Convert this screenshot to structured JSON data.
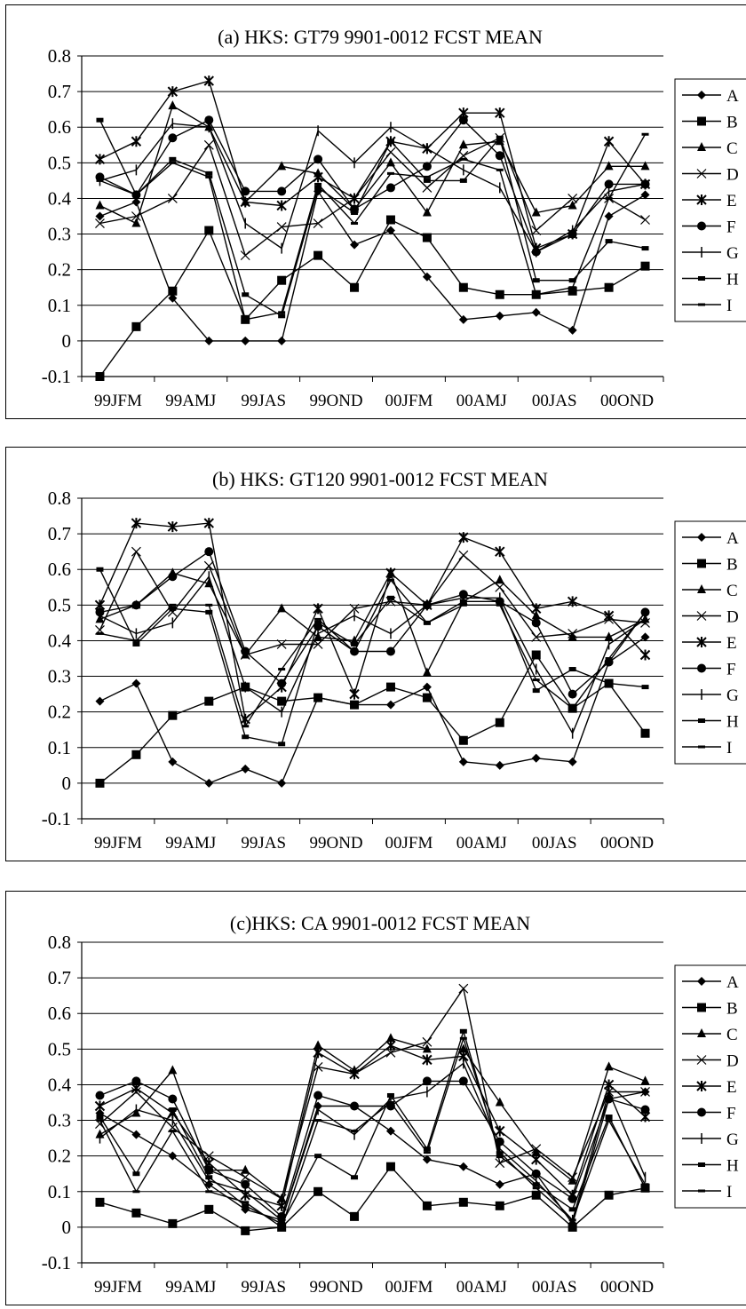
{
  "chart_data": [
    {
      "type": "line",
      "title": "(a) HKS: GT79  9901-0012  FCST MEAN",
      "xlabel": "",
      "ylabel": "",
      "ylim": [
        -0.1,
        0.8
      ],
      "yticks": [
        "0.8",
        "0.7",
        "0.6",
        "0.5",
        "0.4",
        "0.3",
        "0.2",
        "0.1",
        "0",
        "-0.1"
      ],
      "x_tick_labels": [
        "99JFM",
        "99AMJ",
        "99JAS",
        "99OND",
        "00JFM",
        "00AMJ",
        "00JAS",
        "00OND"
      ],
      "legend_position": "right",
      "series": [
        {
          "name": "A",
          "marker": "diamond",
          "values": [
            0.35,
            0.39,
            0.12,
            0.0,
            0.0,
            0.0,
            0.42,
            0.27,
            0.31,
            0.18,
            0.06,
            0.07,
            0.08,
            0.03,
            0.35,
            0.41
          ]
        },
        {
          "name": "B",
          "marker": "square",
          "values": [
            -0.1,
            0.04,
            0.14,
            0.31,
            0.06,
            0.17,
            0.24,
            0.15,
            0.34,
            0.29,
            0.15,
            0.13,
            0.13,
            0.14,
            0.15,
            0.21
          ]
        },
        {
          "name": "C",
          "marker": "triangle",
          "values": [
            0.38,
            0.33,
            0.66,
            0.6,
            0.39,
            0.49,
            0.47,
            0.37,
            0.5,
            0.36,
            0.55,
            0.56,
            0.36,
            0.38,
            0.49,
            0.49
          ]
        },
        {
          "name": "D",
          "marker": "x",
          "values": [
            0.33,
            0.35,
            0.4,
            0.55,
            0.24,
            0.32,
            0.33,
            0.4,
            0.53,
            0.43,
            0.52,
            0.57,
            0.31,
            0.4,
            0.4,
            0.34
          ]
        },
        {
          "name": "E",
          "marker": "star",
          "values": [
            0.51,
            0.56,
            0.7,
            0.73,
            0.39,
            0.38,
            0.46,
            0.4,
            0.56,
            0.54,
            0.64,
            0.64,
            0.26,
            0.3,
            0.56,
            0.44
          ]
        },
        {
          "name": "F",
          "marker": "circle",
          "values": [
            0.46,
            0.41,
            0.57,
            0.62,
            0.42,
            0.42,
            0.51,
            0.37,
            0.43,
            0.49,
            0.62,
            0.52,
            0.25,
            0.3,
            0.44,
            0.44
          ]
        },
        {
          "name": "G",
          "marker": "plus",
          "values": [
            0.45,
            0.48,
            0.61,
            0.6,
            0.33,
            0.26,
            0.59,
            0.5,
            0.6,
            0.54,
            0.48,
            0.43,
            0.25,
            0.31,
            0.42,
            0.44
          ]
        },
        {
          "name": "H",
          "marker": "dash",
          "values": [
            0.62,
            0.41,
            0.51,
            0.47,
            0.13,
            0.07,
            0.43,
            0.36,
            0.56,
            0.45,
            0.45,
            0.57,
            0.17,
            0.17,
            0.28,
            0.26
          ]
        },
        {
          "name": "I",
          "marker": "none",
          "values": [
            0.45,
            0.41,
            0.5,
            0.46,
            0.06,
            0.08,
            0.44,
            0.33,
            0.47,
            0.46,
            0.51,
            0.48,
            0.13,
            0.15,
            0.4,
            0.58
          ]
        }
      ]
    },
    {
      "type": "line",
      "title": "(b) HKS: GT120  9901-0012  FCST MEAN",
      "xlabel": "",
      "ylabel": "",
      "ylim": [
        -0.1,
        0.8
      ],
      "yticks": [
        "0.8",
        "0.7",
        "0.6",
        "0.5",
        "0.4",
        "0.3",
        "0.2",
        "0.1",
        "0",
        "-0.1"
      ],
      "x_tick_labels": [
        "99JFM",
        "99AMJ",
        "99JAS",
        "99OND",
        "00JFM",
        "00AMJ",
        "00JAS",
        "00OND"
      ],
      "legend_position": "right",
      "series": [
        {
          "name": "A",
          "marker": "diamond",
          "values": [
            0.23,
            0.28,
            0.06,
            0.0,
            0.04,
            0.0,
            0.24,
            0.22,
            0.22,
            0.27,
            0.06,
            0.05,
            0.07,
            0.06,
            0.34,
            0.41
          ]
        },
        {
          "name": "B",
          "marker": "square",
          "values": [
            0.0,
            0.08,
            0.19,
            0.23,
            0.27,
            0.23,
            0.24,
            0.22,
            0.27,
            0.24,
            0.12,
            0.17,
            0.36,
            0.21,
            0.28,
            0.14
          ]
        },
        {
          "name": "C",
          "marker": "triangle",
          "values": [
            0.46,
            0.5,
            0.59,
            0.56,
            0.36,
            0.49,
            0.41,
            0.4,
            0.59,
            0.31,
            0.51,
            0.57,
            0.47,
            0.41,
            0.41,
            0.46
          ]
        },
        {
          "name": "D",
          "marker": "x",
          "values": [
            0.43,
            0.65,
            0.48,
            0.61,
            0.36,
            0.39,
            0.39,
            0.49,
            0.51,
            0.5,
            0.64,
            0.55,
            0.41,
            0.42,
            0.46,
            0.45
          ]
        },
        {
          "name": "E",
          "marker": "star",
          "values": [
            0.5,
            0.73,
            0.72,
            0.73,
            0.18,
            0.27,
            0.49,
            0.25,
            0.59,
            0.5,
            0.69,
            0.65,
            0.49,
            0.51,
            0.47,
            0.36
          ]
        },
        {
          "name": "F",
          "marker": "circle",
          "values": [
            0.48,
            0.5,
            0.58,
            0.65,
            0.37,
            0.28,
            0.44,
            0.37,
            0.37,
            0.5,
            0.53,
            0.51,
            0.45,
            0.25,
            0.34,
            0.48
          ]
        },
        {
          "name": "G",
          "marker": "plus",
          "values": [
            0.47,
            0.42,
            0.45,
            0.58,
            0.27,
            0.2,
            0.42,
            0.47,
            0.42,
            0.5,
            0.52,
            0.52,
            0.32,
            0.14,
            0.39,
            0.46
          ]
        },
        {
          "name": "H",
          "marker": "dash",
          "values": [
            0.6,
            0.39,
            0.49,
            0.48,
            0.13,
            0.11,
            0.45,
            0.39,
            0.52,
            0.45,
            0.51,
            0.51,
            0.26,
            0.32,
            0.28,
            0.27
          ]
        },
        {
          "name": "I",
          "marker": "none",
          "values": [
            0.42,
            0.4,
            0.5,
            0.5,
            0.16,
            0.32,
            0.46,
            0.37,
            0.57,
            0.45,
            0.5,
            0.5,
            0.29,
            0.21,
            0.35,
            0.48
          ]
        }
      ]
    },
    {
      "type": "line",
      "title": "(c)HKS: CA  9901-0012  FCST MEAN",
      "xlabel": "",
      "ylabel": "",
      "ylim": [
        -0.1,
        0.8
      ],
      "yticks": [
        "0.8",
        "0.7",
        "0.6",
        "0.5",
        "0.4",
        "0.3",
        "0.2",
        "0.1",
        "0",
        "-0.1"
      ],
      "x_tick_labels": [
        "99JFM",
        "99AMJ",
        "99JAS",
        "99OND",
        "00JFM",
        "00AMJ",
        "00JAS",
        "00OND"
      ],
      "legend_position": "right",
      "series": [
        {
          "name": "A",
          "marker": "diamond",
          "values": [
            0.32,
            0.26,
            0.2,
            0.12,
            0.05,
            0.02,
            0.34,
            0.34,
            0.27,
            0.19,
            0.17,
            0.12,
            0.15,
            0.01,
            0.36,
            0.38
          ]
        },
        {
          "name": "B",
          "marker": "square",
          "values": [
            0.07,
            0.04,
            0.01,
            0.05,
            -0.01,
            0.0,
            0.1,
            0.03,
            0.17,
            0.06,
            0.07,
            0.06,
            0.09,
            0.0,
            0.09,
            0.11
          ]
        },
        {
          "name": "C",
          "marker": "triangle",
          "values": [
            0.26,
            0.32,
            0.44,
            0.16,
            0.16,
            0.08,
            0.51,
            0.44,
            0.53,
            0.5,
            0.5,
            0.35,
            0.21,
            0.13,
            0.45,
            0.41
          ]
        },
        {
          "name": "D",
          "marker": "x",
          "values": [
            0.29,
            0.38,
            0.28,
            0.2,
            0.14,
            0.08,
            0.45,
            0.43,
            0.49,
            0.52,
            0.67,
            0.18,
            0.22,
            0.14,
            0.38,
            0.38
          ]
        },
        {
          "name": "E",
          "marker": "star",
          "values": [
            0.34,
            0.39,
            0.32,
            0.18,
            0.09,
            0.06,
            0.49,
            0.43,
            0.51,
            0.47,
            0.48,
            0.27,
            0.19,
            0.09,
            0.4,
            0.31
          ]
        },
        {
          "name": "F",
          "marker": "circle",
          "values": [
            0.37,
            0.41,
            0.36,
            0.16,
            0.12,
            0.03,
            0.37,
            0.34,
            0.34,
            0.41,
            0.41,
            0.24,
            0.15,
            0.08,
            0.36,
            0.33
          ]
        },
        {
          "name": "G",
          "marker": "plus",
          "values": [
            0.25,
            0.33,
            0.3,
            0.13,
            0.1,
            0.02,
            0.33,
            0.26,
            0.36,
            0.38,
            0.46,
            0.22,
            0.13,
            0.02,
            0.38,
            0.14
          ]
        },
        {
          "name": "H",
          "marker": "dash",
          "values": [
            0.31,
            0.15,
            0.33,
            0.14,
            0.06,
            0.01,
            0.2,
            0.14,
            0.37,
            0.22,
            0.55,
            0.2,
            0.12,
            0.05,
            0.31,
            0.11
          ]
        },
        {
          "name": "I",
          "marker": "none",
          "values": [
            0.3,
            0.1,
            0.27,
            0.1,
            0.07,
            0.0,
            0.3,
            0.27,
            0.35,
            0.21,
            0.53,
            0.21,
            0.11,
            0.02,
            0.3,
            0.12
          ]
        }
      ]
    }
  ]
}
